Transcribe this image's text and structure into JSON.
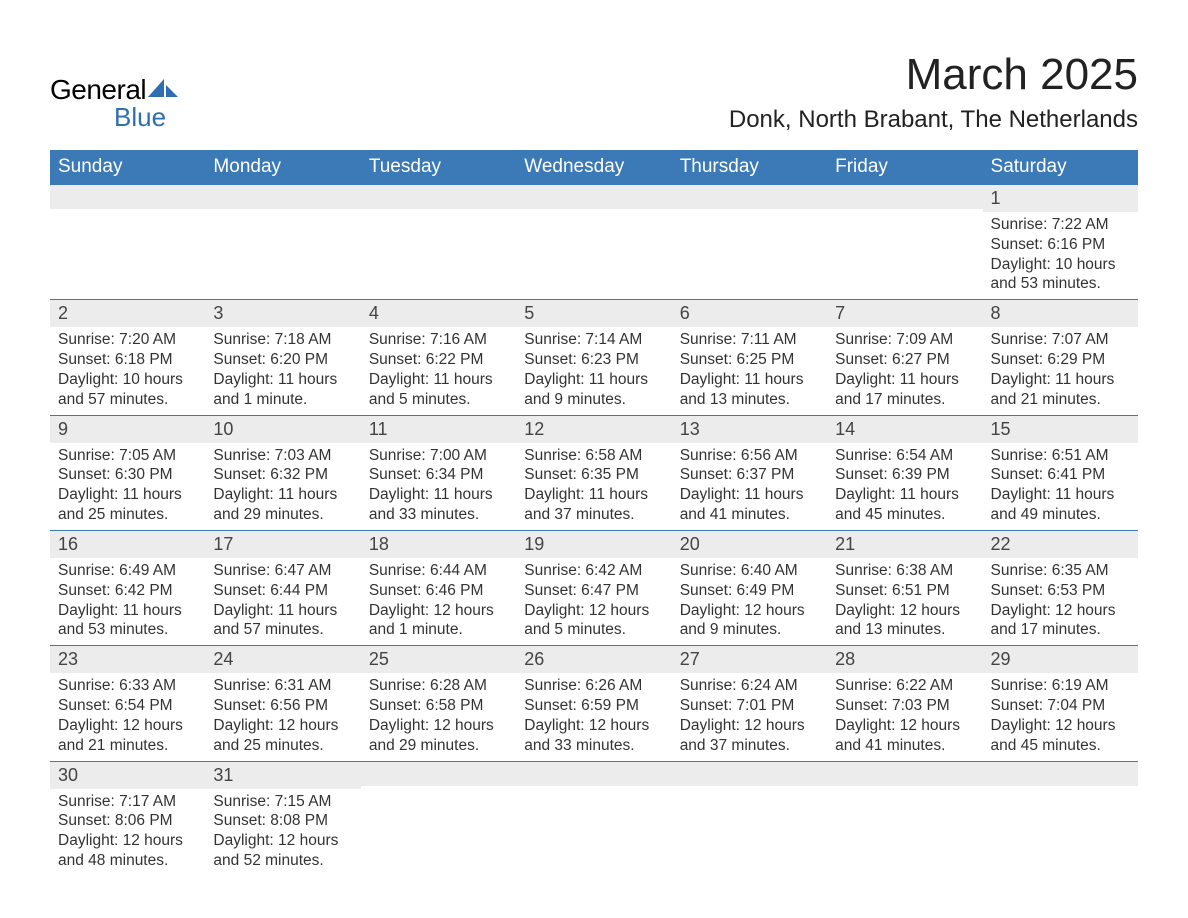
{
  "logo": {
    "text1": "General",
    "text2": "Blue",
    "icon_color": "#2f6fb0"
  },
  "title": "March 2025",
  "location": "Donk, North Brabant, The Netherlands",
  "colors": {
    "header_bg": "#3b79b7",
    "header_text": "#ffffff",
    "daynum_bg": "#ececec",
    "border": "#3b79b7",
    "body_text": "#333333"
  },
  "days_of_week": [
    "Sunday",
    "Monday",
    "Tuesday",
    "Wednesday",
    "Thursday",
    "Friday",
    "Saturday"
  ],
  "weeks": [
    [
      {
        "n": "",
        "sunrise": "",
        "sunset": "",
        "daylight": ""
      },
      {
        "n": "",
        "sunrise": "",
        "sunset": "",
        "daylight": ""
      },
      {
        "n": "",
        "sunrise": "",
        "sunset": "",
        "daylight": ""
      },
      {
        "n": "",
        "sunrise": "",
        "sunset": "",
        "daylight": ""
      },
      {
        "n": "",
        "sunrise": "",
        "sunset": "",
        "daylight": ""
      },
      {
        "n": "",
        "sunrise": "",
        "sunset": "",
        "daylight": ""
      },
      {
        "n": "1",
        "sunrise": "Sunrise: 7:22 AM",
        "sunset": "Sunset: 6:16 PM",
        "daylight": "Daylight: 10 hours and 53 minutes."
      }
    ],
    [
      {
        "n": "2",
        "sunrise": "Sunrise: 7:20 AM",
        "sunset": "Sunset: 6:18 PM",
        "daylight": "Daylight: 10 hours and 57 minutes."
      },
      {
        "n": "3",
        "sunrise": "Sunrise: 7:18 AM",
        "sunset": "Sunset: 6:20 PM",
        "daylight": "Daylight: 11 hours and 1 minute."
      },
      {
        "n": "4",
        "sunrise": "Sunrise: 7:16 AM",
        "sunset": "Sunset: 6:22 PM",
        "daylight": "Daylight: 11 hours and 5 minutes."
      },
      {
        "n": "5",
        "sunrise": "Sunrise: 7:14 AM",
        "sunset": "Sunset: 6:23 PM",
        "daylight": "Daylight: 11 hours and 9 minutes."
      },
      {
        "n": "6",
        "sunrise": "Sunrise: 7:11 AM",
        "sunset": "Sunset: 6:25 PM",
        "daylight": "Daylight: 11 hours and 13 minutes."
      },
      {
        "n": "7",
        "sunrise": "Sunrise: 7:09 AM",
        "sunset": "Sunset: 6:27 PM",
        "daylight": "Daylight: 11 hours and 17 minutes."
      },
      {
        "n": "8",
        "sunrise": "Sunrise: 7:07 AM",
        "sunset": "Sunset: 6:29 PM",
        "daylight": "Daylight: 11 hours and 21 minutes."
      }
    ],
    [
      {
        "n": "9",
        "sunrise": "Sunrise: 7:05 AM",
        "sunset": "Sunset: 6:30 PM",
        "daylight": "Daylight: 11 hours and 25 minutes."
      },
      {
        "n": "10",
        "sunrise": "Sunrise: 7:03 AM",
        "sunset": "Sunset: 6:32 PM",
        "daylight": "Daylight: 11 hours and 29 minutes."
      },
      {
        "n": "11",
        "sunrise": "Sunrise: 7:00 AM",
        "sunset": "Sunset: 6:34 PM",
        "daylight": "Daylight: 11 hours and 33 minutes."
      },
      {
        "n": "12",
        "sunrise": "Sunrise: 6:58 AM",
        "sunset": "Sunset: 6:35 PM",
        "daylight": "Daylight: 11 hours and 37 minutes."
      },
      {
        "n": "13",
        "sunrise": "Sunrise: 6:56 AM",
        "sunset": "Sunset: 6:37 PM",
        "daylight": "Daylight: 11 hours and 41 minutes."
      },
      {
        "n": "14",
        "sunrise": "Sunrise: 6:54 AM",
        "sunset": "Sunset: 6:39 PM",
        "daylight": "Daylight: 11 hours and 45 minutes."
      },
      {
        "n": "15",
        "sunrise": "Sunrise: 6:51 AM",
        "sunset": "Sunset: 6:41 PM",
        "daylight": "Daylight: 11 hours and 49 minutes."
      }
    ],
    [
      {
        "n": "16",
        "sunrise": "Sunrise: 6:49 AM",
        "sunset": "Sunset: 6:42 PM",
        "daylight": "Daylight: 11 hours and 53 minutes."
      },
      {
        "n": "17",
        "sunrise": "Sunrise: 6:47 AM",
        "sunset": "Sunset: 6:44 PM",
        "daylight": "Daylight: 11 hours and 57 minutes."
      },
      {
        "n": "18",
        "sunrise": "Sunrise: 6:44 AM",
        "sunset": "Sunset: 6:46 PM",
        "daylight": "Daylight: 12 hours and 1 minute."
      },
      {
        "n": "19",
        "sunrise": "Sunrise: 6:42 AM",
        "sunset": "Sunset: 6:47 PM",
        "daylight": "Daylight: 12 hours and 5 minutes."
      },
      {
        "n": "20",
        "sunrise": "Sunrise: 6:40 AM",
        "sunset": "Sunset: 6:49 PM",
        "daylight": "Daylight: 12 hours and 9 minutes."
      },
      {
        "n": "21",
        "sunrise": "Sunrise: 6:38 AM",
        "sunset": "Sunset: 6:51 PM",
        "daylight": "Daylight: 12 hours and 13 minutes."
      },
      {
        "n": "22",
        "sunrise": "Sunrise: 6:35 AM",
        "sunset": "Sunset: 6:53 PM",
        "daylight": "Daylight: 12 hours and 17 minutes."
      }
    ],
    [
      {
        "n": "23",
        "sunrise": "Sunrise: 6:33 AM",
        "sunset": "Sunset: 6:54 PM",
        "daylight": "Daylight: 12 hours and 21 minutes."
      },
      {
        "n": "24",
        "sunrise": "Sunrise: 6:31 AM",
        "sunset": "Sunset: 6:56 PM",
        "daylight": "Daylight: 12 hours and 25 minutes."
      },
      {
        "n": "25",
        "sunrise": "Sunrise: 6:28 AM",
        "sunset": "Sunset: 6:58 PM",
        "daylight": "Daylight: 12 hours and 29 minutes."
      },
      {
        "n": "26",
        "sunrise": "Sunrise: 6:26 AM",
        "sunset": "Sunset: 6:59 PM",
        "daylight": "Daylight: 12 hours and 33 minutes."
      },
      {
        "n": "27",
        "sunrise": "Sunrise: 6:24 AM",
        "sunset": "Sunset: 7:01 PM",
        "daylight": "Daylight: 12 hours and 37 minutes."
      },
      {
        "n": "28",
        "sunrise": "Sunrise: 6:22 AM",
        "sunset": "Sunset: 7:03 PM",
        "daylight": "Daylight: 12 hours and 41 minutes."
      },
      {
        "n": "29",
        "sunrise": "Sunrise: 6:19 AM",
        "sunset": "Sunset: 7:04 PM",
        "daylight": "Daylight: 12 hours and 45 minutes."
      }
    ],
    [
      {
        "n": "30",
        "sunrise": "Sunrise: 7:17 AM",
        "sunset": "Sunset: 8:06 PM",
        "daylight": "Daylight: 12 hours and 48 minutes."
      },
      {
        "n": "31",
        "sunrise": "Sunrise: 7:15 AM",
        "sunset": "Sunset: 8:08 PM",
        "daylight": "Daylight: 12 hours and 52 minutes."
      },
      {
        "n": "",
        "sunrise": "",
        "sunset": "",
        "daylight": ""
      },
      {
        "n": "",
        "sunrise": "",
        "sunset": "",
        "daylight": ""
      },
      {
        "n": "",
        "sunrise": "",
        "sunset": "",
        "daylight": ""
      },
      {
        "n": "",
        "sunrise": "",
        "sunset": "",
        "daylight": ""
      },
      {
        "n": "",
        "sunrise": "",
        "sunset": "",
        "daylight": ""
      }
    ]
  ]
}
